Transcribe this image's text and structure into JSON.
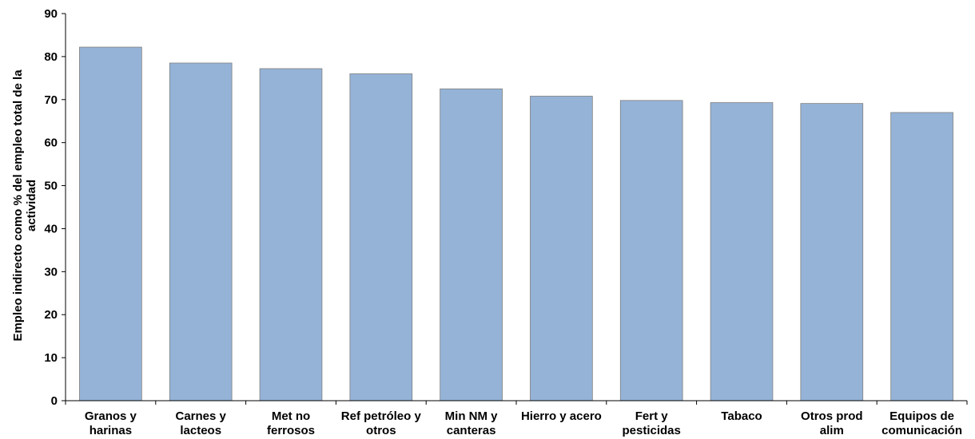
{
  "chart_data": {
    "type": "bar",
    "categories": [
      [
        "Granos y",
        "harinas"
      ],
      [
        "Carnes y",
        "lacteos"
      ],
      [
        "Met no",
        "ferrosos"
      ],
      [
        "Ref petróleo y",
        "otros"
      ],
      [
        "Min NM y",
        "canteras"
      ],
      [
        "Hierro y acero"
      ],
      [
        "Fert y",
        "pesticidas"
      ],
      [
        "Tabaco"
      ],
      [
        "Otros prod",
        "alim"
      ],
      [
        "Equipos de",
        "comunicación"
      ]
    ],
    "values": [
      82.2,
      78.5,
      77.2,
      76.0,
      72.5,
      70.8,
      69.8,
      69.3,
      69.1,
      67.0
    ],
    "title": "",
    "xlabel": "",
    "ylabel": [
      "Empleo indirecto  como % del empleo total de la",
      "actividad"
    ],
    "ylim": [
      0,
      90
    ],
    "yticks": [
      0,
      10,
      20,
      30,
      40,
      50,
      60,
      70,
      80,
      90
    ],
    "grid": false,
    "legend": "none",
    "bar_color": "#95B3D7",
    "bar_edge_color": "#7F7F7F"
  }
}
